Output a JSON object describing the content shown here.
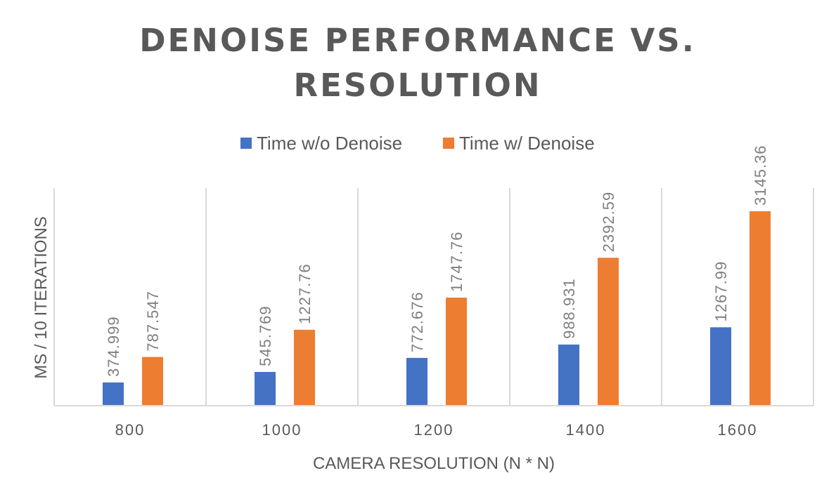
{
  "chart_data": {
    "type": "bar",
    "title_lines": [
      "DENOISE PERFORMANCE VS.",
      "RESOLUTION"
    ],
    "xlabel": "CAMERA RESOLUTION (N * N)",
    "ylabel": "MS / 10 ITERATIONS",
    "categories": [
      "800",
      "1000",
      "1200",
      "1400",
      "1600"
    ],
    "series": [
      {
        "name": "Time w/o Denoise",
        "color": "#4472C4",
        "values": [
          374.999,
          545.769,
          772.676,
          988.931,
          1267.99
        ],
        "labels": [
          "374.999",
          "545.769",
          "772.676",
          "988.931",
          "1267.99"
        ]
      },
      {
        "name": "Time w/ Denoise",
        "color": "#ED7D31",
        "values": [
          787.547,
          1227.76,
          1747.76,
          2392.59,
          3145.36
        ],
        "labels": [
          "787.547",
          "1227.76",
          "1747.76",
          "2392.59",
          "3145.36"
        ]
      }
    ],
    "ylim": [
      0,
      3500
    ],
    "grid": "vertical category separators",
    "legend_position": "top"
  }
}
